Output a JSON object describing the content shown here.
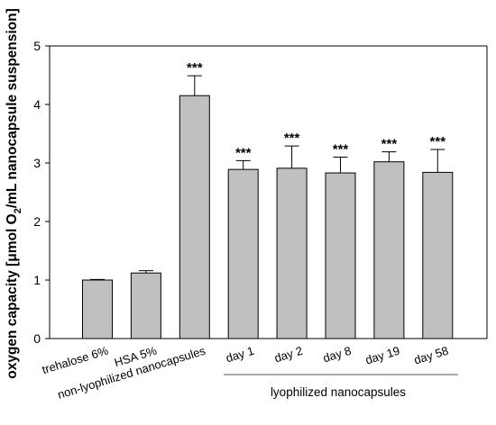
{
  "chart_data": {
    "type": "bar",
    "categories": [
      "trehalose 6%",
      "HSA 5%",
      "non-lyophilized nanocapsules",
      "day 1",
      "day 2",
      "day 8",
      "day 19",
      "day 58"
    ],
    "values": [
      1.0,
      1.12,
      4.15,
      2.89,
      2.91,
      2.83,
      3.02,
      2.84
    ],
    "errors": [
      0.01,
      0.04,
      0.34,
      0.15,
      0.38,
      0.27,
      0.17,
      0.39
    ],
    "annotations": [
      "",
      "",
      "***",
      "***",
      "***",
      "***",
      "***",
      "***"
    ],
    "ylabel_main": "oxygen capacity [μmol O",
    "ylabel_sub": "2",
    "ylabel_tail": "/mL nanocapsule suspension]",
    "xlabel": "",
    "group_label": "lyophilized nanocapsules",
    "ylim": [
      0,
      5
    ],
    "yticks": [
      "0",
      "1",
      "2",
      "3",
      "4",
      "5"
    ],
    "grid": false,
    "bar_color": "#c0c0c0",
    "bar_edge_color": "#000000"
  }
}
